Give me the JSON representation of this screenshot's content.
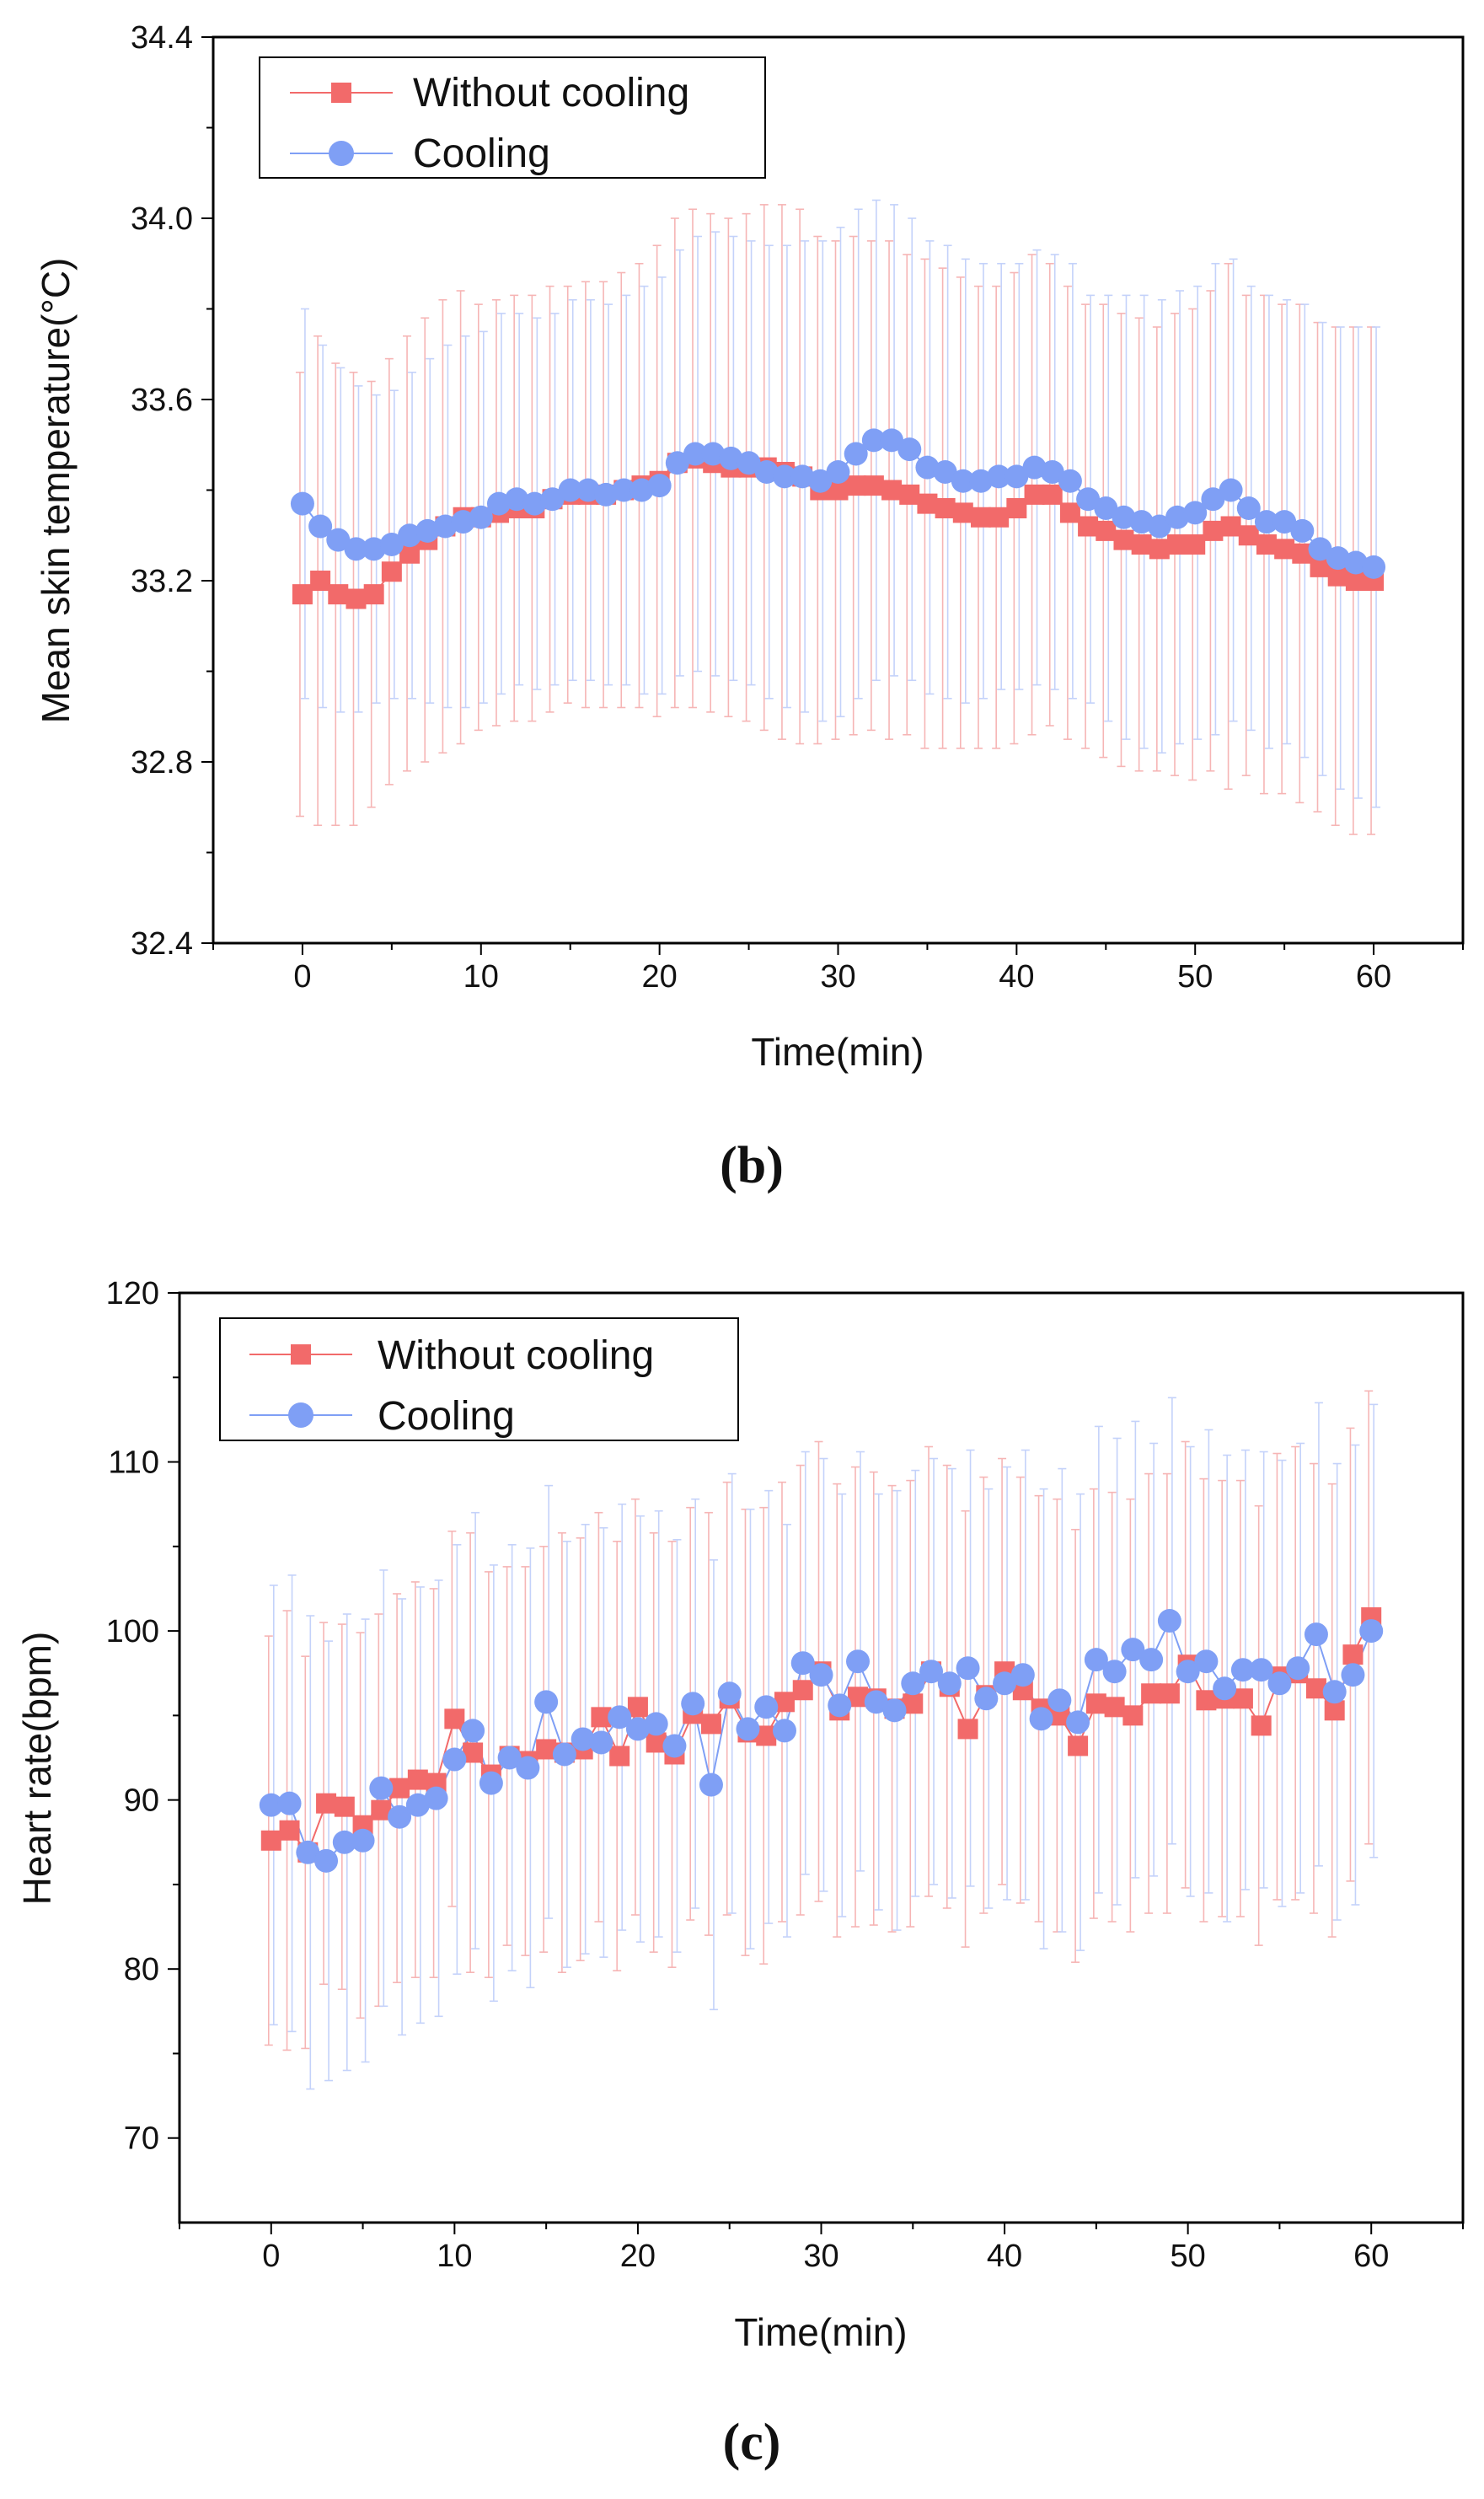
{
  "figure": {
    "panel_b_label": "(b)",
    "panel_c_label": "(c)"
  },
  "colors": {
    "without_cooling": "#f26a6a",
    "cooling": "#7f9ff5",
    "without_cooling_error": "#f6b5b5",
    "cooling_error": "#c4d2fa"
  },
  "chart_data": [
    {
      "type": "line",
      "panel": "(b)",
      "xlabel": "Time(min)",
      "ylabel": "Mean skin temperature(°C)",
      "xlim": [
        -5,
        65
      ],
      "ylim": [
        32.4,
        34.4
      ],
      "xticks": [
        0,
        10,
        20,
        30,
        40,
        50,
        60
      ],
      "yticks": [
        32.4,
        32.8,
        33.2,
        33.6,
        34.0,
        34.4
      ],
      "ytick_labels": [
        "32.4",
        "32.8",
        "33.2",
        "33.6",
        "34.0",
        "34.4"
      ],
      "grid": false,
      "legend_position": "top-left",
      "x": [
        0,
        1,
        2,
        3,
        4,
        5,
        6,
        7,
        8,
        9,
        10,
        11,
        12,
        13,
        14,
        15,
        16,
        17,
        18,
        19,
        20,
        21,
        22,
        23,
        24,
        25,
        26,
        27,
        28,
        29,
        30,
        31,
        32,
        33,
        34,
        35,
        36,
        37,
        38,
        39,
        40,
        41,
        42,
        43,
        44,
        45,
        46,
        47,
        48,
        49,
        50,
        51,
        52,
        53,
        54,
        55,
        56,
        57,
        58,
        59,
        60
      ],
      "series": [
        {
          "name": "Without cooling",
          "marker": "square",
          "values": [
            33.17,
            33.2,
            33.17,
            33.16,
            33.17,
            33.22,
            33.26,
            33.29,
            33.32,
            33.34,
            33.34,
            33.35,
            33.36,
            33.36,
            33.38,
            33.39,
            33.39,
            33.39,
            33.4,
            33.41,
            33.42,
            33.46,
            33.47,
            33.46,
            33.45,
            33.45,
            33.45,
            33.44,
            33.43,
            33.4,
            33.4,
            33.41,
            33.41,
            33.4,
            33.39,
            33.37,
            33.36,
            33.35,
            33.34,
            33.34,
            33.36,
            33.39,
            33.39,
            33.35,
            33.32,
            33.31,
            33.29,
            33.28,
            33.27,
            33.28,
            33.28,
            33.31,
            33.32,
            33.3,
            33.28,
            33.27,
            33.26,
            33.23,
            33.21,
            33.2,
            33.2
          ],
          "errors": [
            0.49,
            0.54,
            0.51,
            0.5,
            0.47,
            0.47,
            0.48,
            0.49,
            0.5,
            0.5,
            0.47,
            0.47,
            0.47,
            0.47,
            0.47,
            0.46,
            0.47,
            0.47,
            0.48,
            0.49,
            0.52,
            0.54,
            0.55,
            0.55,
            0.55,
            0.56,
            0.58,
            0.59,
            0.59,
            0.56,
            0.55,
            0.55,
            0.54,
            0.55,
            0.53,
            0.54,
            0.53,
            0.52,
            0.51,
            0.51,
            0.52,
            0.53,
            0.51,
            0.5,
            0.49,
            0.5,
            0.5,
            0.5,
            0.49,
            0.51,
            0.52,
            0.53,
            0.58,
            0.53,
            0.55,
            0.54,
            0.55,
            0.54,
            0.55,
            0.56,
            0.56
          ]
        },
        {
          "name": "Cooling",
          "marker": "circle",
          "values": [
            33.37,
            33.32,
            33.29,
            33.27,
            33.27,
            33.28,
            33.3,
            33.31,
            33.32,
            33.33,
            33.34,
            33.37,
            33.38,
            33.37,
            33.38,
            33.4,
            33.4,
            33.39,
            33.4,
            33.4,
            33.41,
            33.46,
            33.48,
            33.48,
            33.47,
            33.46,
            33.44,
            33.43,
            33.43,
            33.42,
            33.44,
            33.48,
            33.51,
            33.51,
            33.49,
            33.45,
            33.44,
            33.42,
            33.42,
            33.43,
            33.43,
            33.45,
            33.44,
            33.42,
            33.38,
            33.36,
            33.34,
            33.33,
            33.32,
            33.34,
            33.35,
            33.38,
            33.4,
            33.36,
            33.33,
            33.33,
            33.31,
            33.27,
            33.25,
            33.24,
            33.23
          ],
          "errors": [
            0.43,
            0.4,
            0.38,
            0.36,
            0.34,
            0.34,
            0.36,
            0.38,
            0.4,
            0.41,
            0.41,
            0.42,
            0.41,
            0.41,
            0.41,
            0.42,
            0.42,
            0.42,
            0.43,
            0.45,
            0.46,
            0.47,
            0.48,
            0.49,
            0.49,
            0.49,
            0.5,
            0.51,
            0.52,
            0.53,
            0.54,
            0.54,
            0.53,
            0.52,
            0.51,
            0.5,
            0.5,
            0.49,
            0.48,
            0.47,
            0.47,
            0.48,
            0.48,
            0.48,
            0.45,
            0.47,
            0.49,
            0.5,
            0.5,
            0.5,
            0.5,
            0.52,
            0.51,
            0.49,
            0.5,
            0.49,
            0.5,
            0.5,
            0.51,
            0.52,
            0.53
          ]
        }
      ]
    },
    {
      "type": "line",
      "panel": "(c)",
      "xlabel": "Time(min)",
      "ylabel": "Heart rate(bpm)",
      "xlim": [
        -5,
        65
      ],
      "ylim": [
        65,
        120
      ],
      "xticks": [
        0,
        10,
        20,
        30,
        40,
        50,
        60
      ],
      "yticks": [
        70,
        80,
        90,
        100,
        110,
        120
      ],
      "ytick_labels": [
        "70",
        "80",
        "90",
        "100",
        "110",
        "120"
      ],
      "grid": false,
      "legend_position": "top-left",
      "x": [
        0,
        1,
        2,
        3,
        4,
        5,
        6,
        7,
        8,
        9,
        10,
        11,
        12,
        13,
        14,
        15,
        16,
        17,
        18,
        19,
        20,
        21,
        22,
        23,
        24,
        25,
        26,
        27,
        28,
        29,
        30,
        31,
        32,
        33,
        34,
        35,
        36,
        37,
        38,
        39,
        40,
        41,
        42,
        43,
        44,
        45,
        46,
        47,
        48,
        49,
        50,
        51,
        52,
        53,
        54,
        55,
        56,
        57,
        58,
        59,
        60
      ],
      "series": [
        {
          "name": "Without cooling",
          "marker": "square",
          "values": [
            87.6,
            88.2,
            86.9,
            89.8,
            89.6,
            88.5,
            89.4,
            90.7,
            91.2,
            91.0,
            94.8,
            92.8,
            91.5,
            92.6,
            92.3,
            93.0,
            92.8,
            93.0,
            94.9,
            92.6,
            95.5,
            93.4,
            92.7,
            95.1,
            94.5,
            96.0,
            94.0,
            93.8,
            95.8,
            96.5,
            97.6,
            95.3,
            96.1,
            96.0,
            95.4,
            95.7,
            97.6,
            96.7,
            94.2,
            96.2,
            97.6,
            96.5,
            95.4,
            95.0,
            93.2,
            95.7,
            95.5,
            95.0,
            96.3,
            96.3,
            98.0,
            95.9,
            96.0,
            96.0,
            94.4,
            97.3,
            97.5,
            96.6,
            95.3,
            98.6,
            100.8
          ],
          "errors": [
            12.1,
            13.0,
            11.6,
            10.7,
            10.8,
            11.4,
            11.6,
            11.5,
            11.7,
            11.5,
            11.1,
            13.0,
            12.0,
            11.2,
            11.5,
            12.0,
            13.0,
            12.5,
            12.1,
            12.7,
            12.3,
            12.4,
            12.6,
            12.2,
            12.5,
            12.8,
            13.2,
            13.5,
            13.0,
            13.3,
            13.6,
            13.4,
            13.6,
            13.4,
            13.2,
            13.2,
            13.3,
            13.1,
            12.9,
            12.9,
            12.6,
            12.6,
            12.6,
            12.8,
            12.8,
            12.7,
            12.7,
            12.8,
            13.0,
            13.0,
            13.2,
            13.1,
            12.9,
            12.9,
            13.0,
            13.2,
            13.4,
            13.3,
            13.4,
            13.4,
            13.4
          ]
        },
        {
          "name": "Cooling",
          "marker": "circle",
          "values": [
            89.7,
            89.8,
            86.9,
            86.4,
            87.5,
            87.6,
            90.7,
            89.0,
            89.7,
            90.1,
            92.4,
            94.1,
            91.0,
            92.5,
            91.9,
            95.8,
            92.7,
            93.6,
            93.4,
            94.9,
            94.2,
            94.5,
            93.2,
            95.7,
            90.9,
            96.3,
            94.2,
            95.5,
            94.1,
            98.1,
            97.4,
            95.6,
            98.2,
            95.8,
            95.3,
            96.9,
            97.6,
            96.9,
            97.8,
            96.0,
            96.9,
            97.4,
            94.8,
            95.9,
            94.6,
            98.3,
            97.6,
            98.9,
            98.3,
            100.6,
            97.6,
            98.2,
            96.6,
            97.7,
            97.7,
            96.9,
            97.8,
            99.8,
            96.4,
            97.4,
            100.0
          ],
          "errors": [
            13.0,
            13.5,
            14.0,
            13.0,
            13.5,
            13.1,
            12.9,
            12.9,
            12.9,
            12.9,
            12.7,
            12.9,
            12.9,
            12.6,
            13.0,
            12.8,
            12.6,
            12.7,
            12.7,
            12.6,
            12.6,
            12.6,
            12.2,
            12.1,
            13.3,
            13.0,
            13.0,
            12.8,
            12.2,
            12.5,
            12.8,
            12.5,
            12.4,
            12.3,
            13.0,
            12.6,
            12.6,
            12.7,
            12.9,
            12.4,
            12.8,
            13.3,
            13.6,
            13.7,
            13.5,
            13.8,
            13.8,
            13.5,
            12.8,
            13.2,
            13.3,
            13.7,
            13.8,
            13.0,
            12.9,
            13.2,
            13.3,
            13.7,
            13.5,
            13.6,
            13.4
          ]
        }
      ]
    }
  ]
}
